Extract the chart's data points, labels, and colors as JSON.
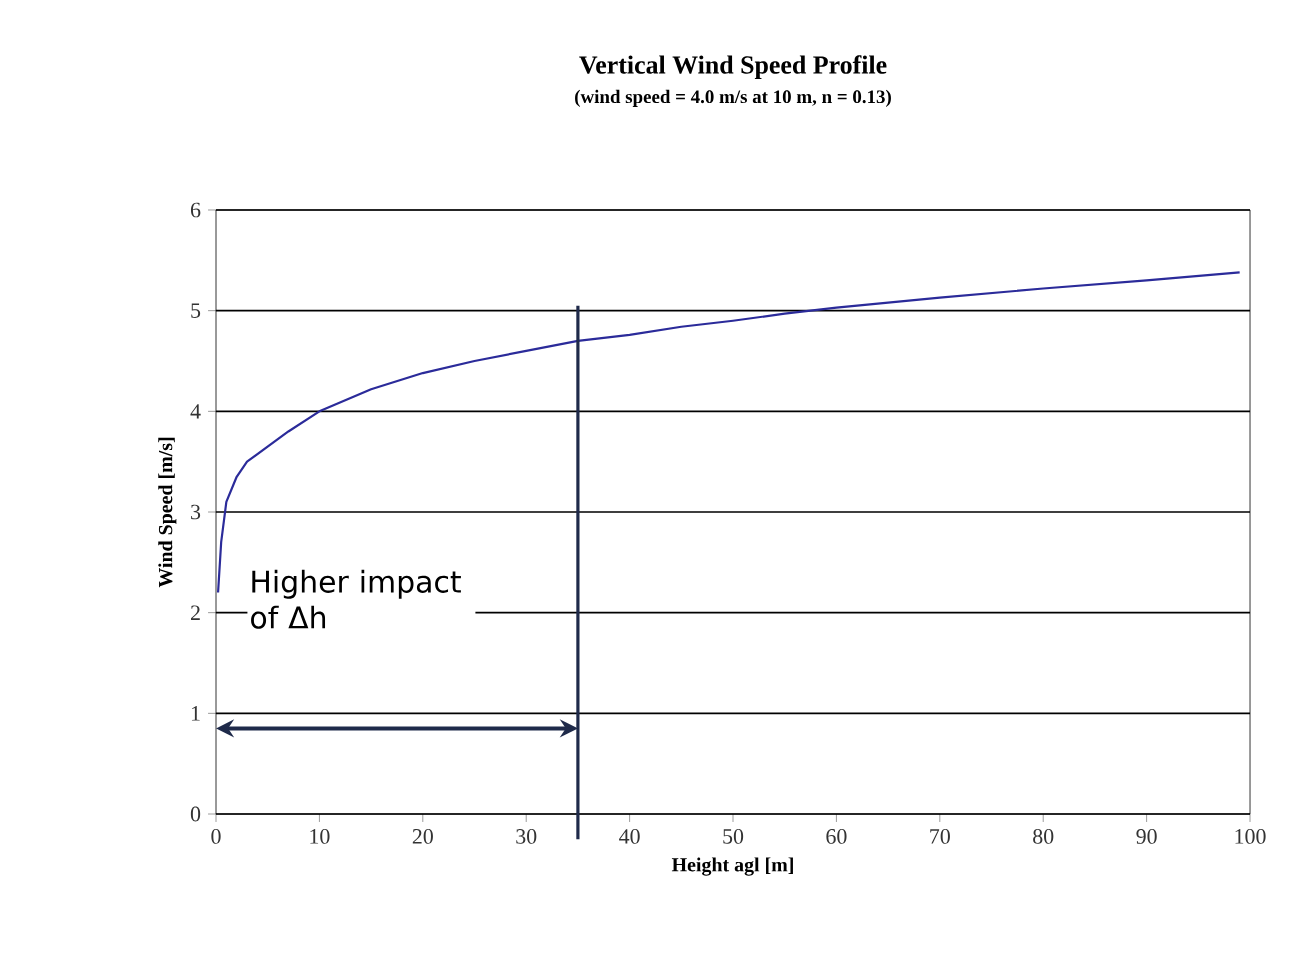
{
  "chart_data": {
    "type": "line",
    "title": "Vertical Wind Speed Profile",
    "subtitle": "(wind speed = 4.0 m/s at 10 m, n = 0.13)",
    "xlabel": "Height agl [m]",
    "ylabel": "Wind Speed [m/s]",
    "series": [
      {
        "color": "#2b2b9a",
        "x": [
          0.2,
          0.5,
          1,
          2,
          3,
          5,
          7,
          10,
          15,
          20,
          25,
          30,
          35,
          40,
          45,
          50,
          55,
          60,
          70,
          80,
          90,
          99
        ],
        "values": [
          2.2,
          2.7,
          3.1,
          3.35,
          3.5,
          3.65,
          3.8,
          4.0,
          4.22,
          4.38,
          4.5,
          4.6,
          4.7,
          4.76,
          4.84,
          4.9,
          4.97,
          5.03,
          5.13,
          5.22,
          5.3,
          5.38
        ]
      }
    ],
    "xlim": [
      0,
      100
    ],
    "ylim": [
      0,
      6
    ],
    "xticks": [
      0,
      10,
      20,
      30,
      40,
      50,
      60,
      70,
      80,
      90,
      100
    ],
    "yticks": [
      0,
      1,
      2,
      3,
      4,
      5,
      6
    ],
    "grid": "y",
    "line_style": "solid",
    "ref_lines": [
      {
        "axis": "x",
        "value": 35,
        "color": "#1f2a4a"
      }
    ],
    "annotations": [
      "Higher impact of Δh"
    ]
  }
}
